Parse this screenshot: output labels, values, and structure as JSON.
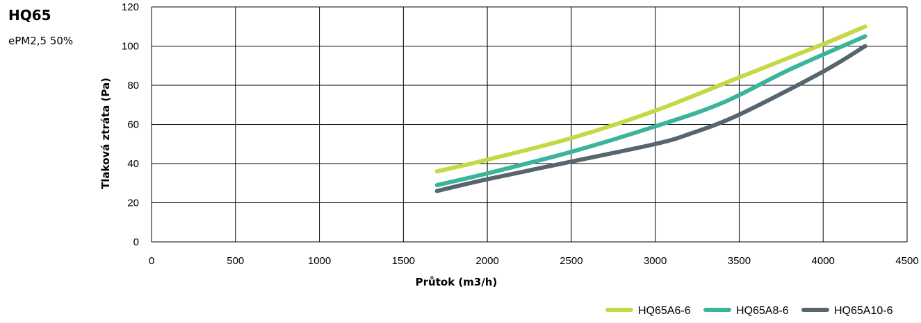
{
  "title": "HQ65",
  "subtitle": "ePM2,5 50%",
  "chart_data": {
    "type": "line",
    "xlabel": "Průtok (m3/h)",
    "ylabel": "Tlaková ztráta (Pa)",
    "xlim": [
      0,
      4500
    ],
    "ylim": [
      0,
      120
    ],
    "xticks": [
      0,
      500,
      1000,
      1500,
      2000,
      2500,
      3000,
      3500,
      4000,
      4500
    ],
    "yticks": [
      0,
      20,
      40,
      60,
      80,
      100,
      120
    ],
    "grid": true,
    "legend_position": "bottom-right",
    "series": [
      {
        "name": "HQ65A6-6",
        "color": "#c5d846",
        "x": [
          1700,
          2000,
          2500,
          3000,
          3500,
          4000,
          4250
        ],
        "y": [
          36,
          42,
          53,
          67,
          84,
          101,
          110
        ]
      },
      {
        "name": "HQ65A8-6",
        "color": "#3bb49a",
        "x": [
          1700,
          2000,
          2500,
          3000,
          3400,
          3800,
          4250
        ],
        "y": [
          29,
          35,
          46,
          59,
          71,
          88,
          105
        ]
      },
      {
        "name": "HQ65A10-6",
        "color": "#56656e",
        "x": [
          1700,
          2000,
          2500,
          3000,
          3200,
          3500,
          4000,
          4250
        ],
        "y": [
          26,
          32,
          41,
          50,
          55,
          65,
          87,
          100
        ]
      }
    ]
  }
}
